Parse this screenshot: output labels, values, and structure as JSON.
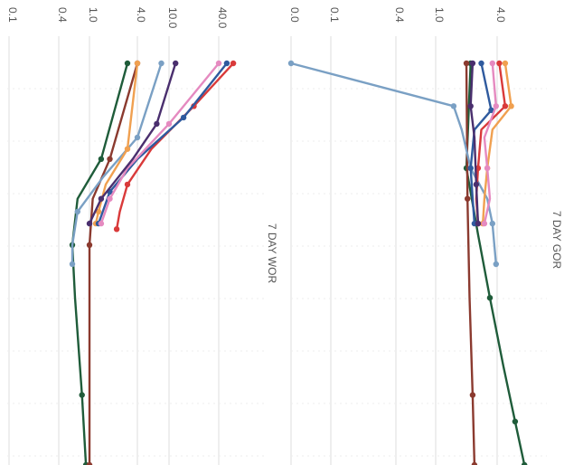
{
  "chart_data": [
    {
      "type": "line",
      "title": "7 DAY GOR",
      "orientation": "rotated-90-clockwise",
      "y_scale": "log",
      "y_ticks": [
        "0.0",
        "0.1",
        "0.4",
        "1.0",
        "4.0"
      ],
      "grid": true,
      "series": [
        {
          "color": "#1f5c3a",
          "points": [
            [
              0.0,
              2.2
            ],
            [
              0.3,
              2.0
            ],
            [
              0.8,
              2.6
            ],
            [
              1.5,
              3.4
            ],
            [
              2.5,
              4.6
            ],
            [
              3.5,
              6.0
            ],
            [
              4.4,
              7.4
            ]
          ]
        },
        {
          "color": "#8b3a2f",
          "points": [
            [
              0.0,
              2.0
            ],
            [
              0.5,
              2.05
            ],
            [
              1.5,
              2.15
            ],
            [
              3.0,
              2.3
            ],
            [
              4.4,
              2.4
            ]
          ]
        },
        {
          "color": "#7aa0c4",
          "points": [
            [
              0.0,
              0.03
            ],
            [
              0.05,
              1.5
            ],
            [
              0.12,
              1.8
            ],
            [
              0.3,
              2.2
            ],
            [
              0.5,
              3.2
            ],
            [
              0.7,
              3.6
            ],
            [
              1.1,
              3.9
            ]
          ]
        },
        {
          "color": "#f0a050",
          "points": [
            [
              0.0,
              4.8
            ],
            [
              0.05,
              5.5
            ],
            [
              0.12,
              3.6
            ],
            [
              0.3,
              3.2
            ],
            [
              0.5,
              3.0
            ],
            [
              0.7,
              2.9
            ]
          ]
        },
        {
          "color": "#d93a3a",
          "points": [
            [
              0.0,
              4.2
            ],
            [
              0.05,
              4.8
            ],
            [
              0.12,
              2.8
            ],
            [
              0.3,
              2.6
            ],
            [
              0.5,
              2.5
            ],
            [
              0.7,
              2.6
            ]
          ]
        },
        {
          "color": "#2f5a9e",
          "points": [
            [
              0.0,
              2.8
            ],
            [
              0.06,
              3.5
            ],
            [
              0.12,
              2.4
            ],
            [
              0.3,
              2.2
            ],
            [
              0.5,
              2.3
            ],
            [
              0.7,
              2.4
            ]
          ]
        },
        {
          "color": "#e58ac0",
          "points": [
            [
              0.0,
              3.6
            ],
            [
              0.05,
              3.9
            ],
            [
              0.15,
              3.0
            ],
            [
              0.3,
              3.2
            ],
            [
              0.5,
              3.4
            ],
            [
              0.7,
              3.0
            ]
          ]
        },
        {
          "color": "#4a2f6e",
          "points": [
            [
              0.0,
              2.3
            ],
            [
              0.05,
              2.2
            ],
            [
              0.15,
              2.4
            ],
            [
              0.4,
              2.5
            ],
            [
              0.7,
              2.6
            ]
          ]
        }
      ]
    },
    {
      "type": "line",
      "title": "7 DAY WOR",
      "orientation": "rotated-90-clockwise",
      "y_scale": "log",
      "y_ticks": [
        "0.1",
        "0.4",
        "1.0",
        "4.0",
        "10.0",
        "40.0"
      ],
      "grid": true,
      "series": [
        {
          "color": "#1f5c3a",
          "points": [
            [
              0.0,
              3.0
            ],
            [
              0.25,
              1.4
            ],
            [
              0.5,
              0.7
            ],
            [
              0.9,
              0.6
            ],
            [
              1.5,
              0.65
            ],
            [
              3.0,
              0.8
            ],
            [
              4.4,
              0.9
            ]
          ]
        },
        {
          "color": "#8b3a2f",
          "points": [
            [
              0.0,
              4.0
            ],
            [
              0.25,
              1.8
            ],
            [
              0.5,
              1.1
            ],
            [
              0.9,
              1.0
            ],
            [
              4.4,
              1.0
            ]
          ]
        },
        {
          "color": "#7aa0c4",
          "points": [
            [
              0.0,
              8.0
            ],
            [
              0.15,
              4.0
            ],
            [
              0.35,
              1.5
            ],
            [
              0.6,
              0.7
            ],
            [
              0.9,
              0.6
            ],
            [
              1.1,
              0.6
            ]
          ]
        },
        {
          "color": "#f0a050",
          "points": [
            [
              0.0,
              4.0
            ],
            [
              0.2,
              3.0
            ],
            [
              0.4,
              1.6
            ],
            [
              0.6,
              1.3
            ],
            [
              0.7,
              1.2
            ]
          ]
        },
        {
          "color": "#d93a3a",
          "points": [
            [
              0.0,
              60.0
            ],
            [
              0.05,
              20.0
            ],
            [
              0.2,
              6.0
            ],
            [
              0.4,
              3.0
            ],
            [
              0.6,
              2.4
            ],
            [
              0.75,
              2.2
            ]
          ]
        },
        {
          "color": "#2f5a9e",
          "points": [
            [
              0.0,
              50.0
            ],
            [
              0.08,
              15.0
            ],
            [
              0.25,
              4.0
            ],
            [
              0.45,
              1.8
            ],
            [
              0.7,
              1.3
            ]
          ]
        },
        {
          "color": "#e58ac0",
          "points": [
            [
              0.0,
              40.0
            ],
            [
              0.1,
              10.0
            ],
            [
              0.3,
              3.0
            ],
            [
              0.5,
              1.8
            ],
            [
              0.7,
              1.4
            ]
          ]
        },
        {
          "color": "#4a2f6e",
          "points": [
            [
              0.0,
              12.0
            ],
            [
              0.1,
              7.0
            ],
            [
              0.25,
              3.5
            ],
            [
              0.5,
              1.4
            ],
            [
              0.7,
              1.0
            ]
          ]
        }
      ]
    }
  ]
}
